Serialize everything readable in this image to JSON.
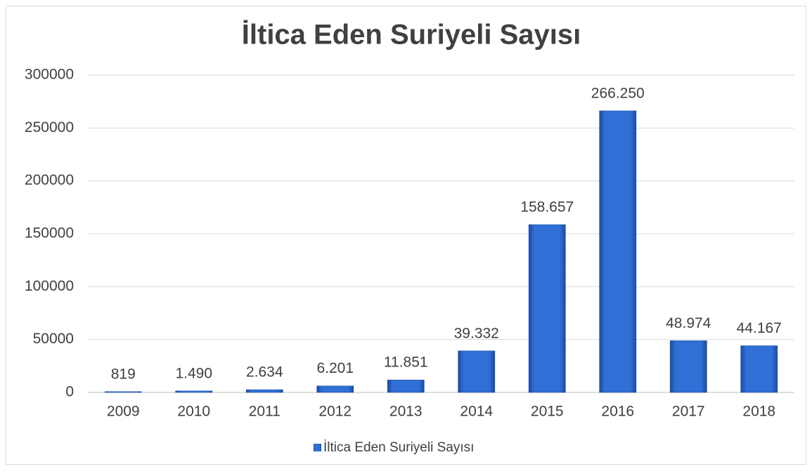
{
  "chart_data": {
    "type": "bar",
    "title": "İltica Eden Suriyeli Sayısı",
    "categories": [
      "2009",
      "2010",
      "2011",
      "2012",
      "2013",
      "2014",
      "2015",
      "2016",
      "2017",
      "2018"
    ],
    "series": [
      {
        "name": "İltica Eden Suriyeli Sayısı",
        "color": "#2f6fd6",
        "values": [
          819,
          1490,
          2634,
          6201,
          11851,
          39332,
          158657,
          266250,
          48974,
          44167
        ],
        "value_labels": [
          "819",
          "1.490",
          "2.634",
          "6.201",
          "11.851",
          "39.332",
          "158.657",
          "266.250",
          "48.974",
          "44.167"
        ]
      }
    ],
    "ylim": [
      0,
      300000
    ],
    "yticks": [
      0,
      50000,
      100000,
      150000,
      200000,
      250000,
      300000
    ],
    "grid": true,
    "legend": "bottom"
  }
}
